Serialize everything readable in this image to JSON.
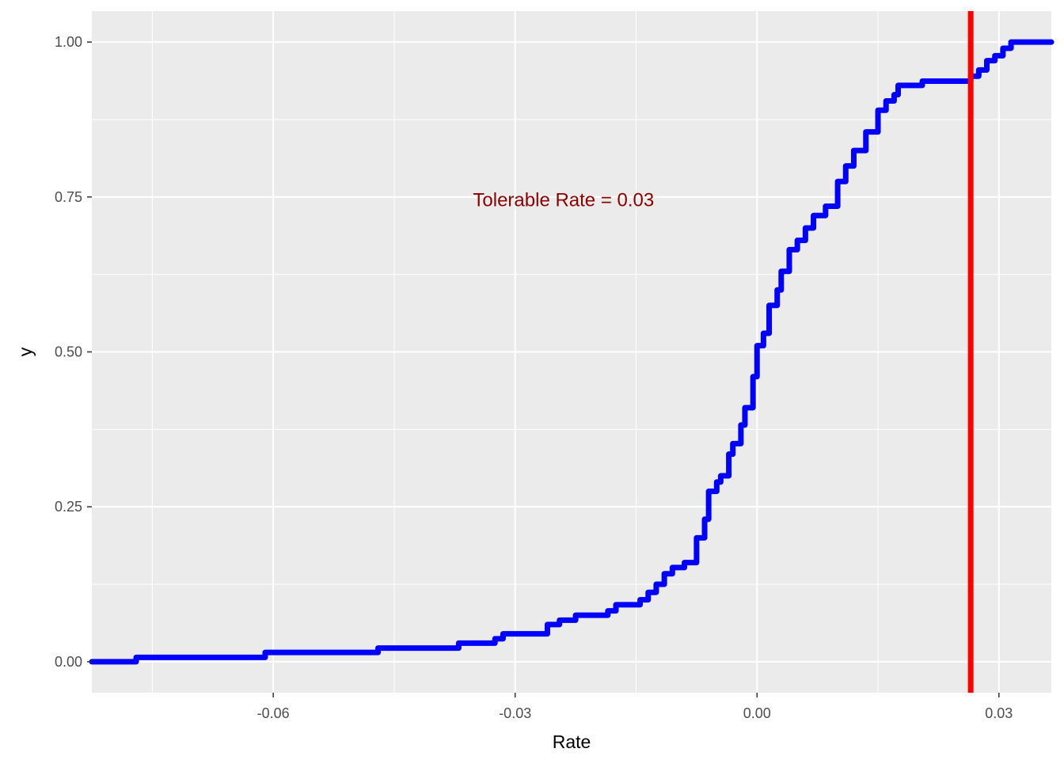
{
  "chart_data": {
    "type": "line",
    "title": "",
    "xlabel": "Rate",
    "ylabel": "y",
    "xlim": [
      -0.0825,
      0.0365
    ],
    "ylim": [
      -0.05,
      1.05
    ],
    "x_ticks": [
      -0.06,
      -0.03,
      0.0,
      0.03
    ],
    "x_tick_labels": [
      "-0.06",
      "-0.03",
      "0.00",
      "0.03"
    ],
    "y_ticks": [
      0,
      0.25,
      0.5,
      0.75,
      1.0
    ],
    "y_tick_labels": [
      "0.00",
      "0.25",
      "0.50",
      "0.75",
      "1.00"
    ],
    "grid": true,
    "legend": "none",
    "panel_color": "#ebebeb",
    "grid_color": "#ffffff",
    "series": [
      {
        "color": "#0000ff",
        "step": true,
        "x": [
          -0.0825,
          -0.077,
          -0.061,
          -0.047,
          -0.037,
          -0.0325,
          -0.0315,
          -0.026,
          -0.0245,
          -0.0225,
          -0.0185,
          -0.0175,
          -0.0145,
          -0.0135,
          -0.0125,
          -0.0115,
          -0.0105,
          -0.009,
          -0.0075,
          -0.0065,
          -0.006,
          -0.005,
          -0.0045,
          -0.0035,
          -0.003,
          -0.002,
          -0.0015,
          -0.0005,
          0.0,
          0.0008,
          0.0015,
          0.0025,
          0.003,
          0.004,
          0.005,
          0.006,
          0.007,
          0.0085,
          0.01,
          0.011,
          0.012,
          0.0135,
          0.015,
          0.016,
          0.017,
          0.0175,
          0.0205,
          0.0265,
          0.0275,
          0.0285,
          0.0295,
          0.0305,
          0.0315,
          0.0365
        ],
        "y": [
          0.0,
          0.007,
          0.015,
          0.022,
          0.03,
          0.037,
          0.045,
          0.06,
          0.067,
          0.075,
          0.082,
          0.092,
          0.1,
          0.112,
          0.125,
          0.142,
          0.152,
          0.16,
          0.2,
          0.23,
          0.275,
          0.29,
          0.3,
          0.335,
          0.352,
          0.382,
          0.41,
          0.46,
          0.51,
          0.53,
          0.575,
          0.6,
          0.63,
          0.665,
          0.68,
          0.7,
          0.72,
          0.735,
          0.775,
          0.8,
          0.825,
          0.855,
          0.89,
          0.905,
          0.915,
          0.93,
          0.937,
          0.945,
          0.955,
          0.97,
          0.978,
          0.99,
          1.0,
          1.0
        ]
      }
    ],
    "vline": {
      "x": 0.0265,
      "color": "#ff0000"
    },
    "annotation": {
      "text": "Tolerable Rate =  0.03",
      "x": -0.024,
      "y": 0.745,
      "color": "#8b0000"
    }
  }
}
